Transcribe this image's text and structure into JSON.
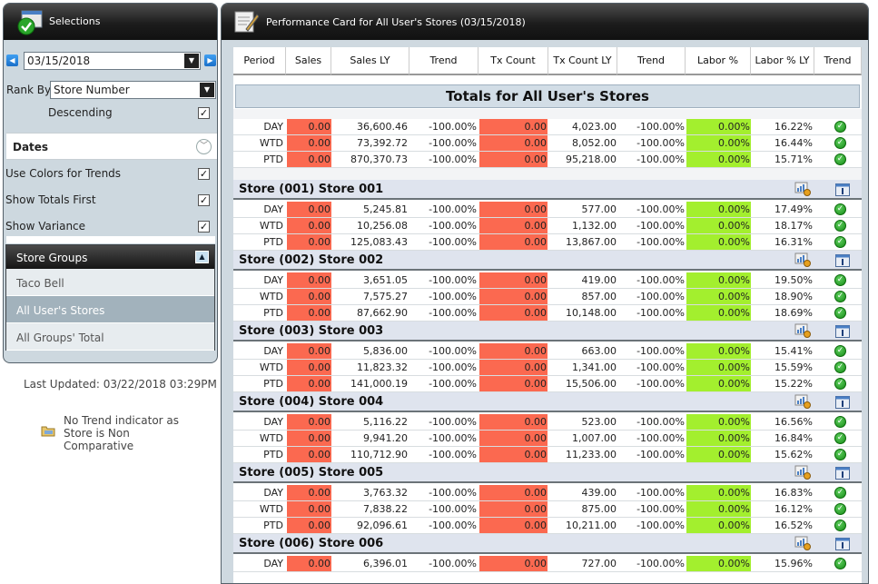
{
  "left": {
    "title": "Selections",
    "date_value": "03/15/2018",
    "rank_by_label": "Rank By",
    "rank_by_value": "Store Number",
    "descending_label": "Descending",
    "dates_label": "Dates",
    "options": [
      {
        "label": "Use Colors for Trends",
        "checked": true
      },
      {
        "label": "Show Totals First",
        "checked": true
      },
      {
        "label": "Show Variance",
        "checked": true
      }
    ],
    "store_groups_label": "Store Groups",
    "groups": [
      "Taco Bell",
      "All User's Stores",
      "All Groups' Total"
    ],
    "selected_group": "All User's Stores",
    "last_updated": "Last Updated: 03/22/2018 03:29PM",
    "legend_text": "No Trend indicator as Store is Non Comparative"
  },
  "card": {
    "title": "Performance Card for All User's Stores (03/15/2018)",
    "columns": [
      "Period",
      "Sales",
      "Sales LY",
      "Trend",
      "Tx Count",
      "Tx Count LY",
      "Trend",
      "Labor %",
      "Labor % LY",
      "Trend"
    ],
    "totals_title": "Totals for All User's Stores",
    "totals_rows": [
      [
        "DAY",
        "0.00",
        "36,600.46",
        "-100.00%",
        "0.00",
        "4,023.00",
        "-100.00%",
        "0.00%",
        "16.22%"
      ],
      [
        "WTD",
        "0.00",
        "73,392.72",
        "-100.00%",
        "0.00",
        "8,052.00",
        "-100.00%",
        "0.00%",
        "16.44%"
      ],
      [
        "PTD",
        "0.00",
        "870,370.73",
        "-100.00%",
        "0.00",
        "95,218.00",
        "-100.00%",
        "0.00%",
        "15.71%"
      ]
    ],
    "stores": [
      {
        "name": "Store (001) Store 001",
        "rows": [
          [
            "DAY",
            "0.00",
            "5,245.81",
            "-100.00%",
            "0.00",
            "577.00",
            "-100.00%",
            "0.00%",
            "17.49%"
          ],
          [
            "WTD",
            "0.00",
            "10,256.08",
            "-100.00%",
            "0.00",
            "1,132.00",
            "-100.00%",
            "0.00%",
            "18.17%"
          ],
          [
            "PTD",
            "0.00",
            "125,083.43",
            "-100.00%",
            "0.00",
            "13,867.00",
            "-100.00%",
            "0.00%",
            "16.31%"
          ]
        ]
      },
      {
        "name": "Store (002) Store 002",
        "rows": [
          [
            "DAY",
            "0.00",
            "3,651.05",
            "-100.00%",
            "0.00",
            "419.00",
            "-100.00%",
            "0.00%",
            "19.50%"
          ],
          [
            "WTD",
            "0.00",
            "7,575.27",
            "-100.00%",
            "0.00",
            "857.00",
            "-100.00%",
            "0.00%",
            "18.90%"
          ],
          [
            "PTD",
            "0.00",
            "87,662.90",
            "-100.00%",
            "0.00",
            "10,148.00",
            "-100.00%",
            "0.00%",
            "18.69%"
          ]
        ]
      },
      {
        "name": "Store (003) Store 003",
        "rows": [
          [
            "DAY",
            "0.00",
            "5,836.00",
            "-100.00%",
            "0.00",
            "663.00",
            "-100.00%",
            "0.00%",
            "15.41%"
          ],
          [
            "WTD",
            "0.00",
            "11,823.32",
            "-100.00%",
            "0.00",
            "1,341.00",
            "-100.00%",
            "0.00%",
            "15.59%"
          ],
          [
            "PTD",
            "0.00",
            "141,000.19",
            "-100.00%",
            "0.00",
            "15,506.00",
            "-100.00%",
            "0.00%",
            "15.22%"
          ]
        ]
      },
      {
        "name": "Store (004) Store 004",
        "rows": [
          [
            "DAY",
            "0.00",
            "5,116.22",
            "-100.00%",
            "0.00",
            "523.00",
            "-100.00%",
            "0.00%",
            "16.56%"
          ],
          [
            "WTD",
            "0.00",
            "9,941.20",
            "-100.00%",
            "0.00",
            "1,007.00",
            "-100.00%",
            "0.00%",
            "16.84%"
          ],
          [
            "PTD",
            "0.00",
            "110,712.90",
            "-100.00%",
            "0.00",
            "11,233.00",
            "-100.00%",
            "0.00%",
            "15.62%"
          ]
        ]
      },
      {
        "name": "Store (005) Store 005",
        "rows": [
          [
            "DAY",
            "0.00",
            "3,763.32",
            "-100.00%",
            "0.00",
            "439.00",
            "-100.00%",
            "0.00%",
            "16.83%"
          ],
          [
            "WTD",
            "0.00",
            "7,838.22",
            "-100.00%",
            "0.00",
            "875.00",
            "-100.00%",
            "0.00%",
            "16.12%"
          ],
          [
            "PTD",
            "0.00",
            "92,096.61",
            "-100.00%",
            "0.00",
            "10,211.00",
            "-100.00%",
            "0.00%",
            "16.52%"
          ]
        ]
      },
      {
        "name": "Store (006) Store 006",
        "rows": [
          [
            "DAY",
            "0.00",
            "6,396.01",
            "-100.00%",
            "0.00",
            "727.00",
            "-100.00%",
            "0.00%",
            "15.96%"
          ]
        ]
      }
    ]
  },
  "colors": {
    "negative": "#fb6950",
    "positive": "#a3ef2e",
    "check": "#168a16"
  },
  "icons": {
    "selections": "checkmark-clipboard-icon",
    "card": "card-edit-icon",
    "store_action": "chart-icon",
    "store_info": "info-icon",
    "trend": "check-circle-icon",
    "legend": "folder-icon"
  }
}
